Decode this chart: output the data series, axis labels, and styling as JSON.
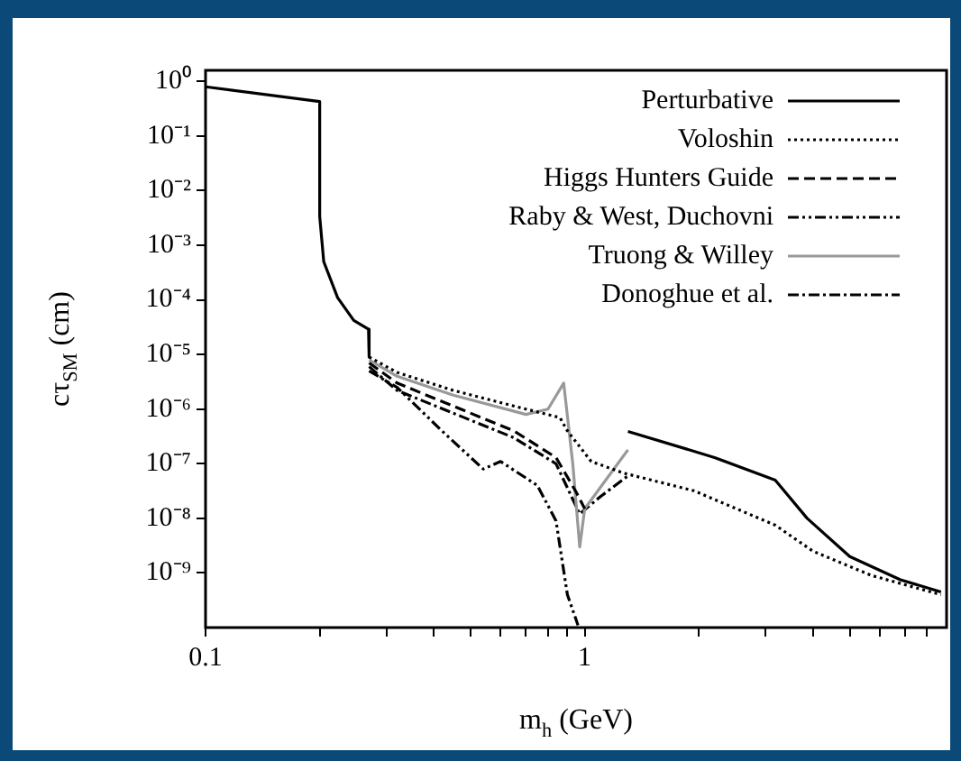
{
  "chart_data": {
    "type": "line",
    "xlabel": "m$_{h}$ (GeV)",
    "ylabel": "cτ$_{SM}$ (cm)",
    "log": "xy",
    "xlim": [
      0.1,
      9
    ],
    "xticks": [
      0.1,
      {
        "value": 0.2,
        "label": null
      },
      {
        "value": 0.3,
        "label": null
      },
      {
        "value": 0.4,
        "label": null
      },
      {
        "value": 0.5,
        "label": null
      },
      {
        "value": 0.6,
        "label": null
      },
      {
        "value": 0.7,
        "label": null
      },
      {
        "value": 0.8,
        "label": null
      },
      {
        "value": 0.9,
        "label": null
      },
      1,
      {
        "value": 2,
        "label": null
      },
      {
        "value": 3,
        "label": null
      },
      {
        "value": 4,
        "label": null
      },
      {
        "value": 5,
        "label": null
      },
      {
        "value": 6,
        "label": null
      },
      {
        "value": 7,
        "label": null
      },
      {
        "value": 8,
        "label": null
      }
    ],
    "ylim": [
      1e-10,
      1.6
    ],
    "yticks": [
      {
        "value": 1,
        "label": "10⁰"
      },
      {
        "value": 0.1,
        "label": "10⁻¹"
      },
      {
        "value": 0.01,
        "label": "10⁻²"
      },
      {
        "value": 0.001,
        "label": "10⁻³"
      },
      {
        "value": 0.0001,
        "label": "10⁻⁴"
      },
      {
        "value": 1e-05,
        "label": "10⁻⁵"
      },
      {
        "value": 1e-06,
        "label": "10⁻⁶"
      },
      {
        "value": 1e-07,
        "label": "10⁻⁷"
      },
      {
        "value": 1e-08,
        "label": "10⁻⁸"
      },
      {
        "value": 1e-09,
        "label": "10⁻⁹"
      }
    ],
    "grid": false,
    "legend": "top right",
    "marker": "none",
    "series": [
      {
        "name": "Perturbative",
        "color": "#000000",
        "line_style": "solid",
        "x": [
          0.1,
          0.2,
          0.2,
          0.205,
          0.223,
          0.246,
          0.269,
          0.27,
          0.6,
          1.3,
          2.2,
          3.18,
          3.86,
          5.0,
          6.8,
          8.7
        ],
        "values": [
          0.8,
          0.43,
          0.0034,
          0.0005,
          0.00011,
          4.2e-05,
          2.9e-05,
          9e-06,
          null,
          3.9e-07,
          1.3e-07,
          5e-08,
          1e-08,
          2e-09,
          7.5e-10,
          4.5e-10
        ]
      },
      {
        "name": "Voloshin",
        "color": "#000000",
        "line_style": "dotted",
        "x": [
          0.27,
          0.32,
          0.45,
          0.7,
          0.86,
          0.9,
          1.04,
          1.27,
          1.94,
          3.18,
          4.0,
          5.7,
          8.7
        ],
        "values": [
          9e-06,
          4.7e-06,
          2.2e-06,
          1e-06,
          7e-07,
          4e-07,
          1.1e-07,
          6.7e-08,
          3.2e-08,
          7.5e-09,
          2.5e-09,
          9e-10,
          4e-10
        ]
      },
      {
        "name": "Higgs Hunters Guide",
        "color": "#000000",
        "line_style": "dashed",
        "x": [
          0.27,
          0.32,
          0.65,
          0.84,
          0.95,
          1.0
        ],
        "values": [
          7e-06,
          3e-06,
          4e-07,
          1.3e-07,
          3e-08,
          1.5e-08
        ]
      },
      {
        "name": "Raby & West, Duchovni",
        "color": "#000000",
        "line_style": "dashdotdot",
        "x": [
          0.27,
          0.32,
          0.42,
          0.54,
          0.6,
          0.75,
          0.84,
          0.9,
          0.96
        ],
        "values": [
          5e-06,
          2.5e-06,
          4e-07,
          8e-08,
          1.1e-07,
          4e-08,
          9e-09,
          4e-10,
          1.1e-10
        ]
      },
      {
        "name": "Truong & Willey",
        "color": "#999999",
        "line_style": "solid",
        "x": [
          0.27,
          0.32,
          0.45,
          0.7,
          0.8,
          0.88,
          0.93,
          0.97,
          1.0,
          1.3
        ],
        "values": [
          8e-06,
          4e-06,
          1.8e-06,
          8e-07,
          1e-06,
          3e-06,
          1e-07,
          3e-09,
          1.5e-08,
          1.8e-07
        ]
      },
      {
        "name": "Donoghue et al.",
        "color": "#000000",
        "line_style": "dashdot",
        "x": [
          0.27,
          0.32,
          0.65,
          0.84,
          0.97,
          1.1,
          1.3
        ],
        "values": [
          6e-06,
          2.2e-06,
          3e-07,
          1e-07,
          1.2e-08,
          2.5e-08,
          6e-08
        ]
      }
    ]
  }
}
